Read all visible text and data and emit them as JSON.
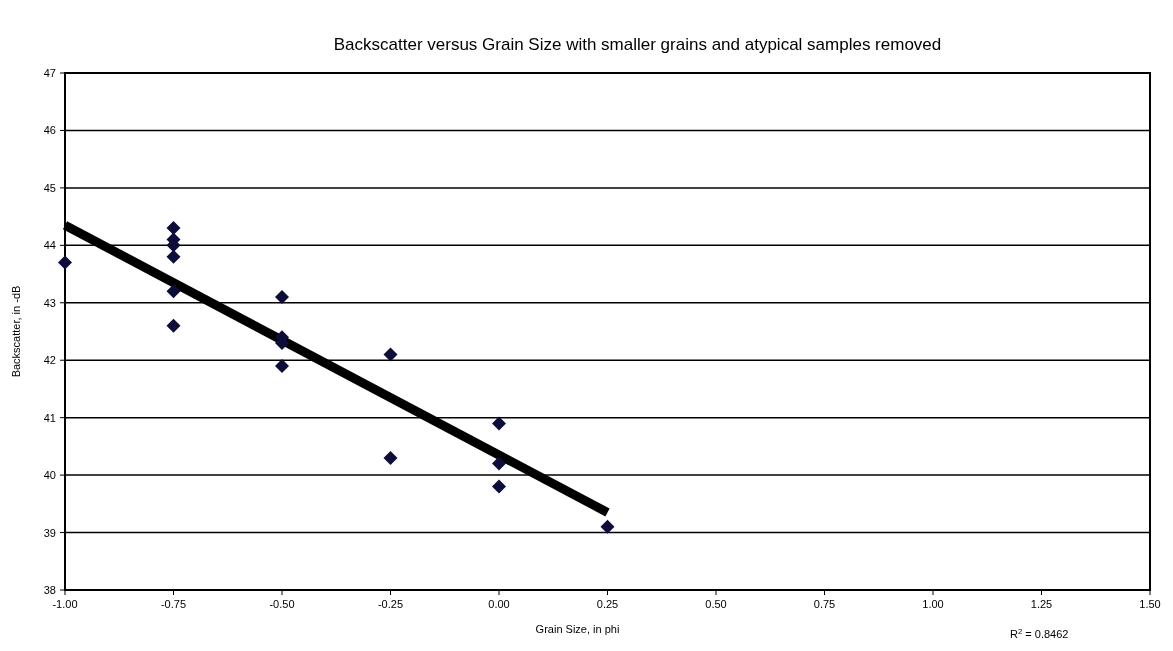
{
  "chart_data": {
    "type": "scatter",
    "title": "Backscatter versus Grain Size with smaller grains and atypical samples removed",
    "xlabel": "Grain Size, in phi",
    "ylabel": "Backscatter, in -dB",
    "annotations": [
      "R$^{2}$ = 0.8462"
    ],
    "series": [
      {
        "color": "#0d0d3a",
        "marker": "diamond",
        "x": [
          -1,
          -0.75,
          -0.75,
          -0.75,
          -0.75,
          -0.75,
          -0.75,
          -0.5,
          -0.5,
          -0.5,
          -0.5,
          -0.25,
          -0.25,
          0,
          0,
          0,
          0.25
        ],
        "values": [
          43.7,
          44.3,
          44.1,
          44,
          43.8,
          43.2,
          42.6,
          43.1,
          42.4,
          42.3,
          41.9,
          42.1,
          40.3,
          40.9,
          40.2,
          39.8,
          39.1
        ]
      },
      {
        "type": "line",
        "color": "#000000",
        "marker": "none",
        "x": [
          -1,
          0.25
        ],
        "values": [
          44.35,
          39.35
        ]
      }
    ],
    "xlim": [
      -1,
      1.5
    ],
    "xticks": [
      {
        "value": -1,
        "label": "-1.00"
      },
      {
        "value": -0.75,
        "label": "-0.75"
      },
      {
        "value": -0.5,
        "label": "-0.50"
      },
      {
        "value": -0.25,
        "label": "-0.25"
      },
      {
        "value": 0,
        "label": "0.00"
      },
      {
        "value": 0.25,
        "label": "0.25"
      },
      {
        "value": 0.5,
        "label": "0.50"
      },
      {
        "value": 0.75,
        "label": "0.75"
      },
      {
        "value": 1,
        "label": "1.00"
      },
      {
        "value": 1.25,
        "label": "1.25"
      },
      {
        "value": 1.5,
        "label": "1.50"
      }
    ],
    "ylim": [
      38,
      47
    ],
    "yticks": [
      38,
      39,
      40,
      41,
      42,
      43,
      44,
      45,
      46,
      47
    ],
    "grid": "y"
  }
}
